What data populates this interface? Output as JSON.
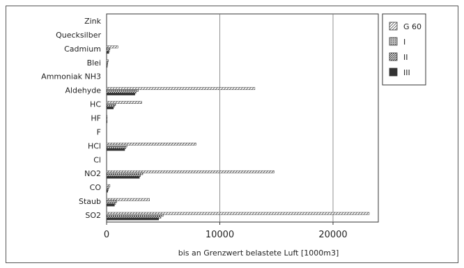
{
  "chart_data": {
    "type": "bar",
    "orientation": "horizontal",
    "categories": [
      "Zink",
      "Quecksilber",
      "Cadmium",
      "Blei",
      "Ammoniak NH3",
      "Aldehyde",
      "HC",
      "HF",
      "F",
      "HCl",
      "Cl",
      "NO2",
      "CO",
      "Staub",
      "SO2"
    ],
    "series": [
      {
        "name": "G 60",
        "values": [
          0,
          0,
          1000,
          150,
          0,
          13100,
          3100,
          50,
          0,
          7900,
          0,
          14800,
          300,
          3800,
          23200
        ]
      },
      {
        "name": "I",
        "values": [
          0,
          0,
          300,
          100,
          0,
          2800,
          800,
          40,
          0,
          1800,
          0,
          3200,
          200,
          900,
          5000
        ]
      },
      {
        "name": "II",
        "values": [
          0,
          0,
          250,
          80,
          0,
          2600,
          700,
          30,
          0,
          1700,
          0,
          3000,
          150,
          800,
          4800
        ]
      },
      {
        "name": "III",
        "values": [
          0,
          0,
          200,
          60,
          0,
          2500,
          600,
          20,
          0,
          1600,
          0,
          2900,
          100,
          700,
          4600
        ]
      }
    ],
    "xlim": [
      0,
      24000
    ],
    "xticks": [
      "0",
      "10000",
      "20000"
    ],
    "xlabel": "bis an Grenzwert belastete Luft [1000m3]",
    "ylabel": "",
    "title": "",
    "grid": "vertical lines at 10000 and 20000",
    "legend_position": "top-right",
    "colors": {
      "frame": "#555555",
      "bar_border": "#333333",
      "solid": "#333333"
    }
  }
}
